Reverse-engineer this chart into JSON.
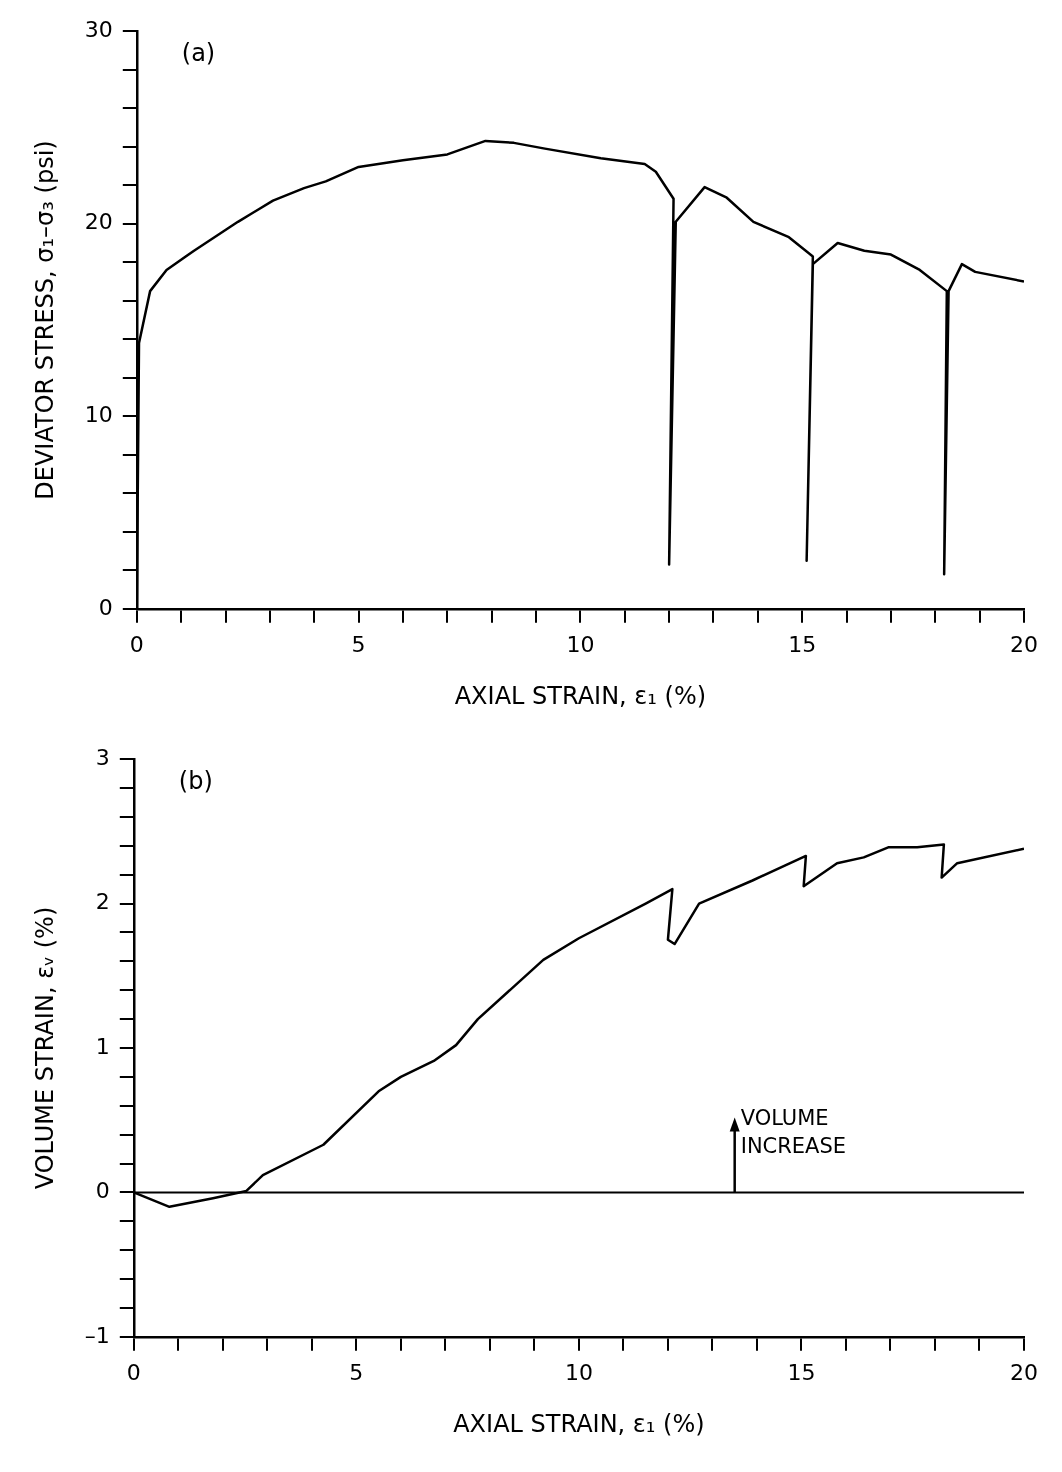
{
  "chart_data": [
    {
      "type": "line",
      "title": "(a)",
      "xlabel": "AXIAL STRAIN, ε₁ (%)",
      "ylabel": "DEVIATOR STRESS, σ₁–σ₃ (psi)",
      "xlim": [
        0,
        20
      ],
      "ylim": [
        0,
        30
      ],
      "xticks": [
        0,
        {
          "value": 1,
          "label": null
        },
        {
          "value": 2,
          "label": null
        },
        {
          "value": 3,
          "label": null
        },
        {
          "value": 4,
          "label": null
        },
        5,
        {
          "value": 6,
          "label": null
        },
        {
          "value": 7,
          "label": null
        },
        {
          "value": 8,
          "label": null
        },
        {
          "value": 9,
          "label": null
        },
        10,
        {
          "value": 11,
          "label": null
        },
        {
          "value": 12,
          "label": null
        },
        {
          "value": 13,
          "label": null
        },
        {
          "value": 14,
          "label": null
        },
        15,
        {
          "value": 16,
          "label": null
        },
        {
          "value": 17,
          "label": null
        },
        {
          "value": 18,
          "label": null
        },
        {
          "value": 19,
          "label": null
        },
        20
      ],
      "yticks": [
        0,
        {
          "value": 2,
          "label": null
        },
        {
          "value": 4,
          "label": null
        },
        {
          "value": 6,
          "label": null
        },
        {
          "value": 8,
          "label": null
        },
        10,
        {
          "value": 12,
          "label": null
        },
        {
          "value": 14,
          "label": null
        },
        {
          "value": 16,
          "label": null
        },
        {
          "value": 18,
          "label": null
        },
        20,
        {
          "value": 22,
          "label": null
        },
        {
          "value": 24,
          "label": null
        },
        {
          "value": 26,
          "label": null
        },
        {
          "value": 28,
          "label": null
        },
        30
      ],
      "grid": false,
      "legend": false,
      "marker": "none",
      "line_style": "solid",
      "series": [
        {
          "color": "#000000",
          "x": [
            0,
            0.05,
            0.3,
            0.67,
            1.29,
            2.28,
            3.07,
            3.77,
            4.26,
            5.0,
            6.0,
            7.0,
            7.86,
            8.5,
            9.2,
            10.46,
            11.45,
            11.7,
            12.1,
            12.0,
            12.15,
            12.8,
            13.3,
            13.9,
            14.7,
            15.24,
            15.1,
            15.24,
            15.8,
            16.4,
            17.0,
            17.65,
            18.26,
            18.2,
            18.3,
            18.6,
            18.9,
            20
          ],
          "values": [
            0,
            13.8,
            16.5,
            17.6,
            18.6,
            20.1,
            21.2,
            21.85,
            22.2,
            22.95,
            23.3,
            23.6,
            24.3,
            24.2,
            23.9,
            23.4,
            23.1,
            22.7,
            21.3,
            2.3,
            20.1,
            21.9,
            21.35,
            20.1,
            19.3,
            18.3,
            2.5,
            17.9,
            19.0,
            18.6,
            18.4,
            17.6,
            16.5,
            1.8,
            16.5,
            17.9,
            17.5,
            17.0
          ]
        }
      ]
    },
    {
      "type": "line",
      "title": "(b)",
      "xlabel": "AXIAL STRAIN, ε₁ (%)",
      "ylabel": "VOLUME STRAIN, εᵥ (%)",
      "xlim": [
        0,
        20
      ],
      "ylim": [
        -1,
        3
      ],
      "xticks": [
        0,
        {
          "value": 1,
          "label": null
        },
        {
          "value": 2,
          "label": null
        },
        {
          "value": 3,
          "label": null
        },
        {
          "value": 4,
          "label": null
        },
        5,
        {
          "value": 6,
          "label": null
        },
        {
          "value": 7,
          "label": null
        },
        {
          "value": 8,
          "label": null
        },
        {
          "value": 9,
          "label": null
        },
        10,
        {
          "value": 11,
          "label": null
        },
        {
          "value": 12,
          "label": null
        },
        {
          "value": 13,
          "label": null
        },
        {
          "value": 14,
          "label": null
        },
        15,
        {
          "value": 16,
          "label": null
        },
        {
          "value": 17,
          "label": null
        },
        {
          "value": 18,
          "label": null
        },
        {
          "value": 19,
          "label": null
        },
        20
      ],
      "yticks": [
        {
          "value": -1,
          "label": "–1"
        },
        {
          "value": -0.8,
          "label": null
        },
        {
          "value": -0.6,
          "label": null
        },
        {
          "value": -0.4,
          "label": null
        },
        {
          "value": -0.2,
          "label": null
        },
        0,
        {
          "value": 0.2,
          "label": null
        },
        {
          "value": 0.4,
          "label": null
        },
        {
          "value": 0.6,
          "label": null
        },
        {
          "value": 0.8,
          "label": null
        },
        1,
        {
          "value": 1.2,
          "label": null
        },
        {
          "value": 1.4,
          "label": null
        },
        {
          "value": 1.6,
          "label": null
        },
        {
          "value": 1.8,
          "label": null
        },
        2,
        {
          "value": 2.2,
          "label": null
        },
        {
          "value": 2.4,
          "label": null
        },
        {
          "value": 2.6,
          "label": null
        },
        {
          "value": 2.8,
          "label": null
        },
        3
      ],
      "grid": false,
      "legend": false,
      "marker": "none",
      "line_style": "solid",
      "ref_lines": [
        {
          "axis": "y",
          "value": 0,
          "color": "#000000"
        }
      ],
      "annotations": [
        {
          "text": "VOLUME INCREASE",
          "x": 13.5,
          "y": 0
        }
      ],
      "series": [
        {
          "color": "#000000",
          "x": [
            0,
            0.8,
            1.78,
            2.53,
            2.9,
            4.26,
            5.5,
            6.0,
            6.74,
            7.24,
            7.73,
            9.2,
            10.0,
            11.5,
            12.1,
            12.0,
            12.15,
            12.7,
            13.9,
            15.1,
            15.05,
            15.8,
            16.4,
            16.95,
            17.6,
            18.2,
            18.15,
            18.5,
            20
          ],
          "values": [
            0,
            -0.1,
            -0.04,
            0.01,
            0.12,
            0.33,
            0.7,
            0.8,
            0.91,
            1.02,
            1.2,
            1.61,
            1.76,
            2.0,
            2.1,
            1.75,
            1.72,
            2.0,
            2.16,
            2.33,
            2.12,
            2.28,
            2.32,
            2.39,
            2.39,
            2.41,
            2.18,
            2.28,
            2.38
          ]
        }
      ]
    }
  ]
}
